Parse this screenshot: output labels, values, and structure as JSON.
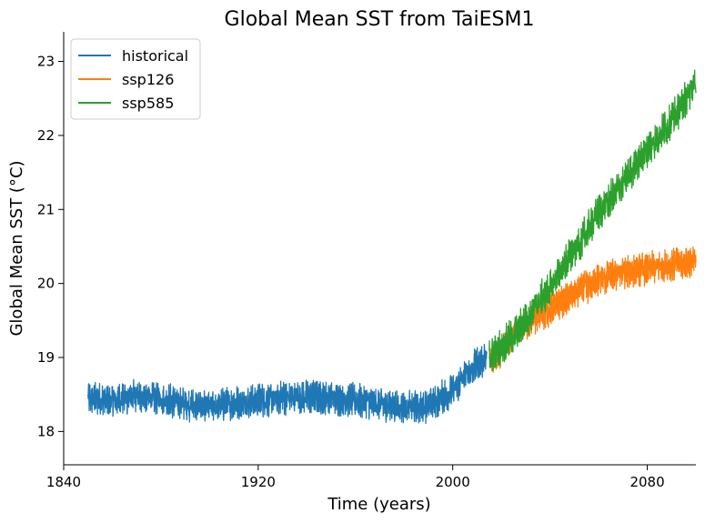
{
  "chart_data": {
    "type": "line",
    "title": "Global Mean SST from TaiESM1",
    "xlabel": "Time (years)",
    "ylabel": "Global Mean SST (°C)",
    "xlim": [
      1840,
      2100
    ],
    "ylim": [
      17.55,
      23.4
    ],
    "xticks": [
      1840,
      1920,
      2000,
      2080
    ],
    "yticks": [
      18,
      19,
      20,
      21,
      22,
      23
    ],
    "legend_position": "top-left",
    "grid": false,
    "series": [
      {
        "name": "historical",
        "color": "#1f77b4",
        "x": [
          1850,
          1860,
          1870,
          1880,
          1890,
          1900,
          1910,
          1920,
          1930,
          1940,
          1950,
          1960,
          1970,
          1980,
          1990,
          2000,
          2005,
          2010,
          2014
        ],
        "y": [
          18.45,
          18.42,
          18.47,
          18.45,
          18.37,
          18.32,
          18.38,
          18.42,
          18.45,
          18.47,
          18.45,
          18.42,
          18.37,
          18.32,
          18.35,
          18.55,
          18.75,
          18.92,
          19.0
        ],
        "noise": 0.22
      },
      {
        "name": "ssp126",
        "color": "#ff7f0e",
        "x": [
          2015,
          2020,
          2025,
          2030,
          2035,
          2040,
          2045,
          2050,
          2055,
          2060,
          2065,
          2070,
          2075,
          2080,
          2085,
          2090,
          2095,
          2100
        ],
        "y": [
          18.95,
          19.1,
          19.3,
          19.45,
          19.55,
          19.65,
          19.75,
          19.85,
          19.95,
          20.05,
          20.1,
          20.15,
          20.18,
          20.2,
          20.22,
          20.25,
          20.27,
          20.3
        ],
        "noise": 0.22
      },
      {
        "name": "ssp585",
        "color": "#2ca02c",
        "x": [
          2015,
          2020,
          2025,
          2030,
          2035,
          2040,
          2045,
          2050,
          2055,
          2060,
          2065,
          2070,
          2075,
          2080,
          2085,
          2090,
          2095,
          2100
        ],
        "y": [
          19.0,
          19.15,
          19.3,
          19.5,
          19.72,
          19.95,
          20.2,
          20.45,
          20.7,
          20.95,
          21.15,
          21.35,
          21.6,
          21.8,
          22.0,
          22.2,
          22.45,
          22.7
        ],
        "noise": 0.24
      }
    ]
  }
}
